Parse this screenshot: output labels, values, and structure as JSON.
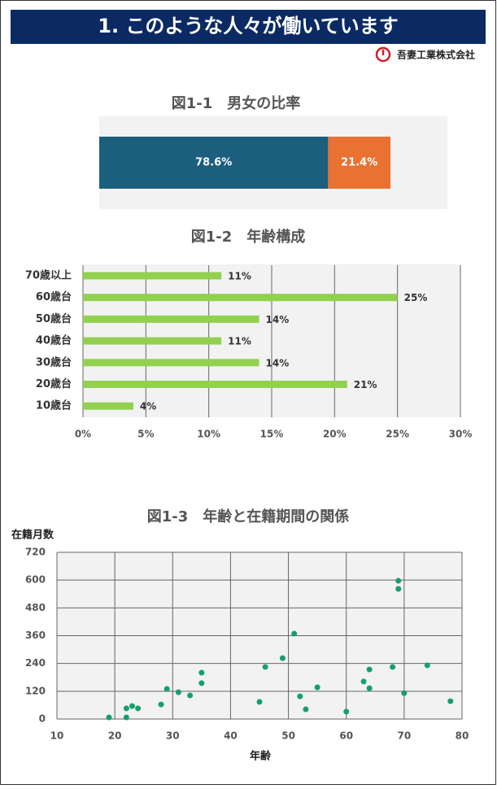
{
  "header": {
    "title": "1. このような人々が働いています",
    "company": "吾妻工業株式会社"
  },
  "chart_data": [
    {
      "type": "bar",
      "stacked": true,
      "orientation": "horizontal",
      "title": "図1-1　男女の比率",
      "series": [
        {
          "color": "#1b5e7e",
          "values": [
            78.6
          ],
          "value_labels": [
            "78.6%"
          ]
        },
        {
          "color": "#e97132",
          "values": [
            21.4
          ],
          "value_labels": [
            "21.4%"
          ]
        }
      ]
    },
    {
      "type": "bar",
      "orientation": "horizontal",
      "title": "図1-2　年齢構成",
      "categories": [
        "70歳以上",
        "60歳台",
        "50歳台",
        "40歳台",
        "30歳台",
        "20歳台",
        "10歳台"
      ],
      "values": [
        11,
        25,
        14,
        11,
        14,
        21,
        4
      ],
      "value_labels": [
        "11%",
        "25%",
        "14%",
        "11%",
        "14%",
        "21%",
        "4%"
      ],
      "color": "#92d050",
      "grid": true,
      "xlim": [
        0,
        30
      ],
      "xticks": [
        {
          "value": 0,
          "label": "0%"
        },
        {
          "value": 5,
          "label": "5%"
        },
        {
          "value": 10,
          "label": "10%"
        },
        {
          "value": 15,
          "label": "15%"
        },
        {
          "value": 20,
          "label": "20%"
        },
        {
          "value": 25,
          "label": "25%"
        },
        {
          "value": 30,
          "label": "30%"
        }
      ]
    },
    {
      "type": "scatter",
      "title": "図1-3　年齢と在籍期間の関係",
      "ylabel": "在籍月数",
      "xlabel": "年齢",
      "x": [
        19,
        22,
        22,
        23,
        24,
        28,
        29,
        31,
        33,
        35,
        35,
        45,
        46,
        49,
        51,
        52,
        53,
        55,
        60,
        63,
        64,
        64,
        68,
        69,
        69,
        70,
        74,
        78
      ],
      "values": [
        7,
        7,
        46,
        56,
        46,
        63,
        130,
        116,
        102,
        200,
        155,
        74,
        225,
        263,
        369,
        98,
        42,
        137,
        32,
        162,
        214,
        133,
        225,
        597,
        562,
        112,
        232,
        77
      ],
      "color": "#14a06c",
      "grid": true,
      "xlim": [
        10,
        80
      ],
      "xticks": [
        10,
        20,
        30,
        40,
        50,
        60,
        70,
        80
      ],
      "ylim": [
        0,
        720
      ],
      "yticks": [
        0,
        120,
        240,
        360,
        480,
        600,
        720
      ]
    }
  ]
}
